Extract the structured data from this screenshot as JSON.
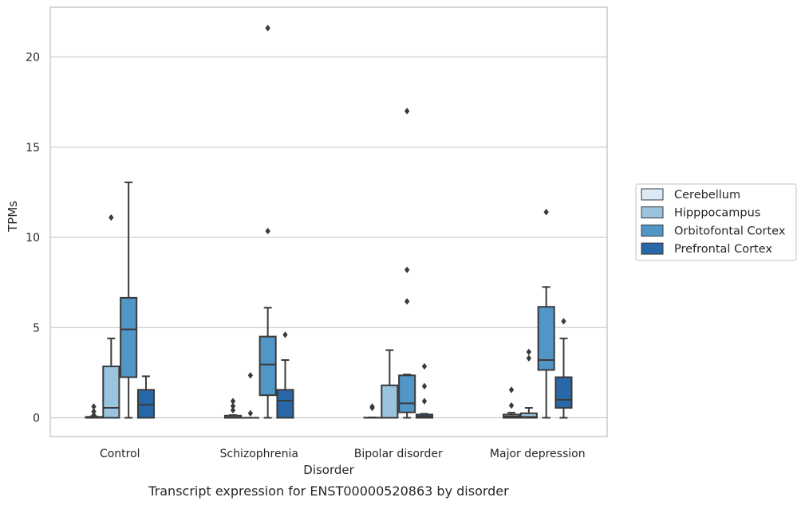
{
  "caption": "Transcript expression for ENST00000520863 by disorder",
  "chart_data": {
    "type": "box",
    "xlabel": "Disorder",
    "ylabel": "TPMs",
    "ylim": [
      -1,
      22.7
    ],
    "yticks": [
      0,
      5,
      10,
      15,
      20
    ],
    "ytick_labels": [
      "0",
      "5",
      "10",
      "15",
      "20"
    ],
    "grid": "horizontal",
    "legend_placement": "right",
    "categories": [
      "Control",
      "Schizophrenia",
      "Bipolar disorder",
      "Major depression"
    ],
    "series": [
      {
        "name": "Cerebellum",
        "color": "#dbe8f5",
        "boxes": [
          {
            "category": "Control",
            "whislo": 0,
            "q1": 0,
            "med": 0.02,
            "q3": 0.05,
            "whishi": 0.08,
            "fliers": [
              0.35,
              0.62,
              0.15
            ]
          },
          {
            "category": "Schizophrenia",
            "whislo": 0,
            "q1": 0,
            "med": 0.03,
            "q3": 0.12,
            "whishi": 0.15,
            "fliers": [
              0.92,
              0.65,
              0.42
            ]
          },
          {
            "category": "Bipolar disorder",
            "whislo": 0,
            "q1": 0,
            "med": 0,
            "q3": 0.01,
            "whishi": 0.02,
            "fliers": [
              0.55,
              0.62
            ]
          },
          {
            "category": "Major depression",
            "whislo": 0,
            "q1": 0,
            "med": 0.08,
            "q3": 0.18,
            "whishi": 0.28,
            "fliers": [
              1.55,
              0.68
            ]
          }
        ]
      },
      {
        "name": "Hipppocampus",
        "color": "#9ac3de",
        "boxes": [
          {
            "category": "Control",
            "whislo": 0,
            "q1": 0,
            "med": 0.55,
            "q3": 2.85,
            "whishi": 4.4,
            "fliers": [
              11.1
            ]
          },
          {
            "category": "Schizophrenia",
            "whislo": 0,
            "q1": 0,
            "med": 0,
            "q3": 0,
            "whishi": 0,
            "fliers": [
              0.25,
              2.35
            ]
          },
          {
            "category": "Bipolar disorder",
            "whislo": 0,
            "q1": 0,
            "med": 0,
            "q3": 1.8,
            "whishi": 3.75,
            "fliers": []
          },
          {
            "category": "Major depression",
            "whislo": 0,
            "q1": 0,
            "med": 0.05,
            "q3": 0.25,
            "whishi": 0.55,
            "fliers": [
              3.3,
              3.65
            ]
          }
        ]
      },
      {
        "name": "Orbitofontal Cortex",
        "color": "#5096c7",
        "boxes": [
          {
            "category": "Control",
            "whislo": 0,
            "q1": 2.25,
            "med": 4.9,
            "q3": 6.65,
            "whishi": 13.05,
            "fliers": []
          },
          {
            "category": "Schizophrenia",
            "whislo": 0,
            "q1": 1.25,
            "med": 2.95,
            "q3": 4.5,
            "whishi": 6.1,
            "fliers": [
              10.35,
              21.6
            ]
          },
          {
            "category": "Bipolar disorder",
            "whislo": 0,
            "q1": 0.3,
            "med": 0.8,
            "q3": 2.35,
            "whishi": 2.4,
            "fliers": [
              6.45,
              8.2,
              17.0
            ]
          },
          {
            "category": "Major depression",
            "whislo": 0,
            "q1": 2.65,
            "med": 3.2,
            "q3": 6.15,
            "whishi": 7.25,
            "fliers": [
              11.4
            ]
          }
        ]
      },
      {
        "name": "Prefrontal Cortex",
        "color": "#2867a8",
        "boxes": [
          {
            "category": "Control",
            "whislo": 0,
            "q1": 0,
            "med": 0.72,
            "q3": 1.55,
            "whishi": 2.3,
            "fliers": []
          },
          {
            "category": "Schizophrenia",
            "whislo": 0,
            "q1": 0,
            "med": 0.95,
            "q3": 1.55,
            "whishi": 3.2,
            "fliers": [
              4.6
            ]
          },
          {
            "category": "Bipolar disorder",
            "whislo": 0,
            "q1": 0,
            "med": 0.08,
            "q3": 0.18,
            "whishi": 0.22,
            "fliers": [
              0.92,
              1.75,
              2.85
            ]
          },
          {
            "category": "Major depression",
            "whislo": 0,
            "q1": 0.55,
            "med": 1.0,
            "q3": 2.25,
            "whishi": 4.4,
            "fliers": [
              5.35
            ]
          }
        ]
      }
    ]
  }
}
